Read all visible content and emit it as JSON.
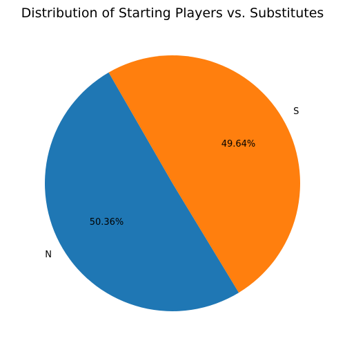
{
  "chart_data": {
    "type": "pie",
    "title": "Distribution of Starting Players vs. Substitutes",
    "labels": [
      "N",
      "S"
    ],
    "values": [
      50.36,
      49.64
    ],
    "percent_labels": [
      "50.36%",
      "49.64%"
    ],
    "colors": [
      "#1f77b4",
      "#ff7f0e"
    ],
    "start_angle_deg": 120,
    "direction": "counterclockwise",
    "legend": "none"
  }
}
